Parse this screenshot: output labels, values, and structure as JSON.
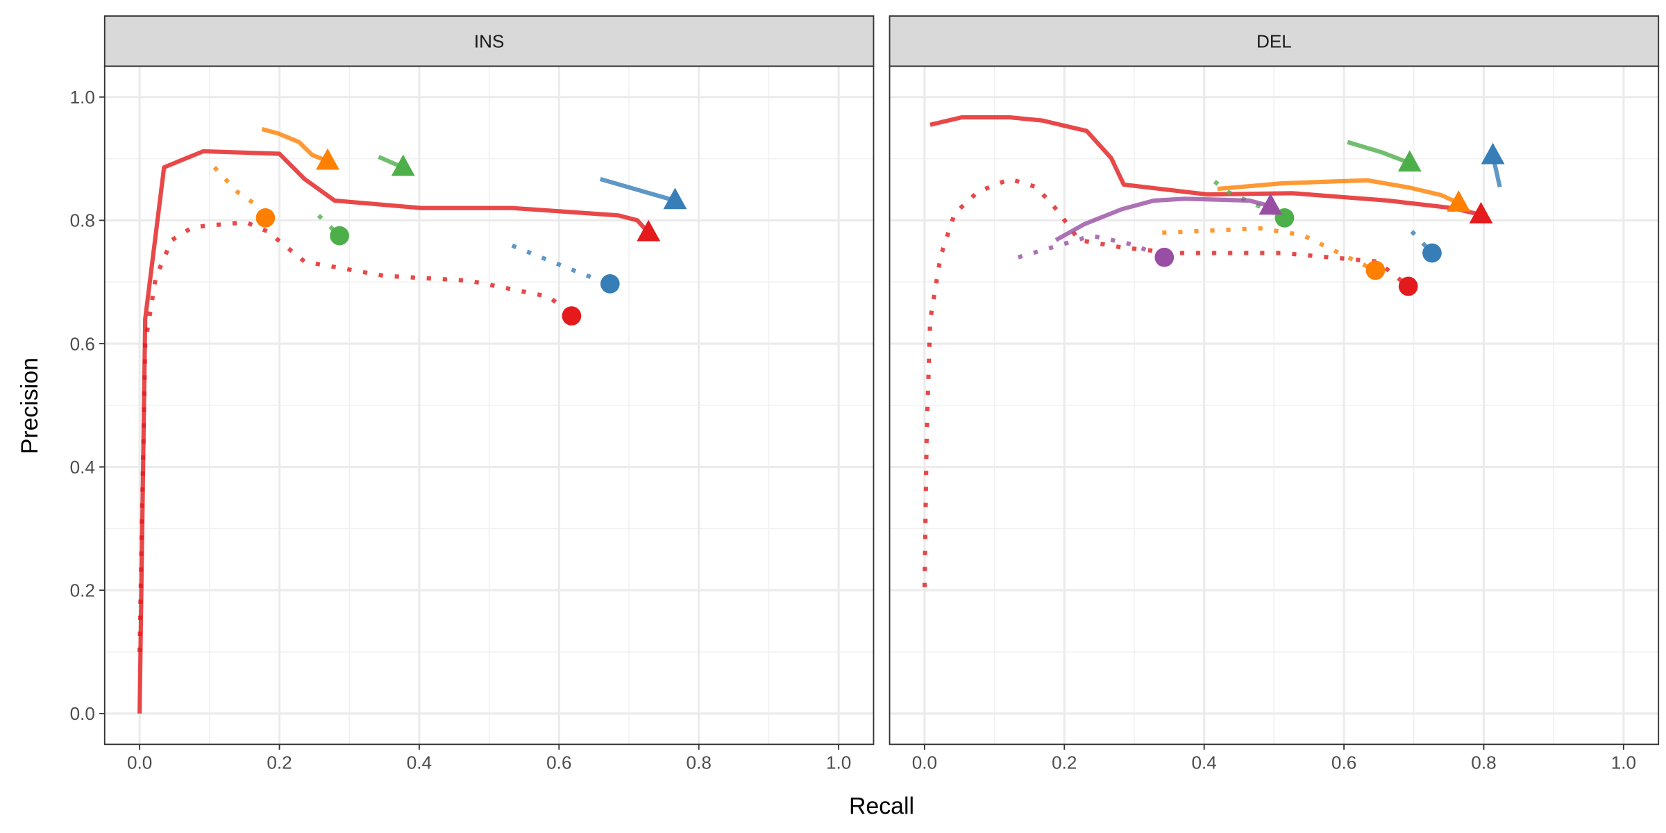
{
  "chart_data": {
    "type": "line",
    "xlabel": "Recall",
    "ylabel": "Precision",
    "xlim": [
      -0.05,
      1.05
    ],
    "ylim": [
      -0.05,
      1.05
    ],
    "x_ticks": [
      "0.0",
      "0.2",
      "0.4",
      "0.6",
      "0.8",
      "1.0"
    ],
    "y_ticks": [
      "0.0",
      "0.2",
      "0.4",
      "0.6",
      "0.8",
      "1.0"
    ],
    "grid": true,
    "legend": "none",
    "colors": {
      "red": "#E41A1C",
      "blue": "#377EB8",
      "green": "#4DAF4A",
      "purple": "#984EA3",
      "orange": "#FF7F00"
    },
    "facets": [
      {
        "label": "INS",
        "series": [
          {
            "color": "#E41A1C",
            "style": "solid",
            "end_marker": "triangle",
            "points": [
              [
                0,
                0
              ],
              [
                0.008,
                0.64
              ],
              [
                0.035,
                0.886
              ],
              [
                0.091,
                0.912
              ],
              [
                0.2,
                0.908
              ],
              [
                0.236,
                0.867
              ],
              [
                0.279,
                0.832
              ],
              [
                0.403,
                0.82
              ],
              [
                0.533,
                0.82
              ],
              [
                0.685,
                0.808
              ],
              [
                0.712,
                0.8
              ],
              [
                0.728,
                0.78
              ]
            ]
          },
          {
            "color": "#E41A1C",
            "style": "dotted",
            "end_marker": "circle",
            "points": [
              [
                0,
                0.1
              ],
              [
                0.008,
                0.6
              ],
              [
                0.023,
                0.707
              ],
              [
                0.046,
                0.768
              ],
              [
                0.076,
                0.789
              ],
              [
                0.152,
                0.797
              ],
              [
                0.183,
                0.782
              ],
              [
                0.236,
                0.733
              ],
              [
                0.35,
                0.71
              ],
              [
                0.472,
                0.702
              ],
              [
                0.586,
                0.676
              ],
              [
                0.618,
                0.645
              ]
            ]
          },
          {
            "color": "#FF7F00",
            "style": "solid",
            "end_marker": "triangle",
            "points": [
              [
                0.175,
                0.948
              ],
              [
                0.198,
                0.941
              ],
              [
                0.228,
                0.927
              ],
              [
                0.247,
                0.906
              ],
              [
                0.269,
                0.896
              ]
            ]
          },
          {
            "color": "#FF7F00",
            "style": "dotted",
            "end_marker": "circle",
            "points": [
              [
                0.107,
                0.886
              ],
              [
                0.14,
                0.846
              ],
              [
                0.163,
                0.828
              ],
              [
                0.18,
                0.804
              ]
            ]
          },
          {
            "color": "#4DAF4A",
            "style": "solid",
            "end_marker": "triangle",
            "points": [
              [
                0.342,
                0.903
              ],
              [
                0.362,
                0.893
              ],
              [
                0.377,
                0.886
              ]
            ]
          },
          {
            "color": "#4DAF4A",
            "style": "dotted",
            "end_marker": "circle",
            "points": [
              [
                0.256,
                0.808
              ],
              [
                0.286,
                0.775
              ]
            ]
          },
          {
            "color": "#377EB8",
            "style": "solid",
            "end_marker": "triangle",
            "points": [
              [
                0.659,
                0.867
              ],
              [
                0.766,
                0.832
              ]
            ]
          },
          {
            "color": "#377EB8",
            "style": "dotted",
            "end_marker": "circle",
            "points": [
              [
                0.533,
                0.759
              ],
              [
                0.636,
                0.712
              ],
              [
                0.673,
                0.697
              ]
            ]
          }
        ]
      },
      {
        "label": "DEL",
        "series": [
          {
            "color": "#E41A1C",
            "style": "solid",
            "end_marker": "triangle",
            "points": [
              [
                0.008,
                0.955
              ],
              [
                0.053,
                0.967
              ],
              [
                0.122,
                0.967
              ],
              [
                0.168,
                0.962
              ],
              [
                0.232,
                0.945
              ],
              [
                0.267,
                0.901
              ],
              [
                0.285,
                0.858
              ],
              [
                0.404,
                0.842
              ],
              [
                0.526,
                0.844
              ],
              [
                0.663,
                0.832
              ],
              [
                0.755,
                0.82
              ],
              [
                0.796,
                0.809
              ]
            ]
          },
          {
            "color": "#E41A1C",
            "style": "dotted",
            "end_marker": "circle",
            "points": [
              [
                0,
                0.205
              ],
              [
                0.003,
                0.45
              ],
              [
                0.008,
                0.638
              ],
              [
                0.023,
                0.742
              ],
              [
                0.043,
                0.811
              ],
              [
                0.076,
                0.846
              ],
              [
                0.122,
                0.867
              ],
              [
                0.16,
                0.854
              ],
              [
                0.19,
                0.816
              ],
              [
                0.221,
                0.768
              ],
              [
                0.282,
                0.756
              ],
              [
                0.358,
                0.747
              ],
              [
                0.511,
                0.747
              ],
              [
                0.648,
                0.733
              ],
              [
                0.692,
                0.693
              ]
            ]
          },
          {
            "color": "#FF7F00",
            "style": "solid",
            "end_marker": "triangle",
            "points": [
              [
                0.419,
                0.851
              ],
              [
                0.511,
                0.86
              ],
              [
                0.633,
                0.865
              ],
              [
                0.694,
                0.853
              ],
              [
                0.739,
                0.841
              ],
              [
                0.764,
                0.828
              ]
            ]
          },
          {
            "color": "#FF7F00",
            "style": "dotted",
            "end_marker": "circle",
            "points": [
              [
                0.34,
                0.78
              ],
              [
                0.48,
                0.787
              ],
              [
                0.541,
                0.776
              ],
              [
                0.602,
                0.742
              ],
              [
                0.645,
                0.719
              ]
            ]
          },
          {
            "color": "#4DAF4A",
            "style": "solid",
            "end_marker": "triangle",
            "points": [
              [
                0.605,
                0.927
              ],
              [
                0.655,
                0.91
              ],
              [
                0.694,
                0.893
              ]
            ]
          },
          {
            "color": "#4DAF4A",
            "style": "dotted",
            "end_marker": "circle",
            "points": [
              [
                0.415,
                0.863
              ],
              [
                0.434,
                0.846
              ],
              [
                0.515,
                0.804
              ]
            ]
          },
          {
            "color": "#377EB8",
            "style": "solid",
            "end_marker": "triangle",
            "points": [
              [
                0.823,
                0.854
              ],
              [
                0.813,
                0.905
              ]
            ]
          },
          {
            "color": "#377EB8",
            "style": "dotted",
            "end_marker": "circle",
            "points": [
              [
                0.697,
                0.782
              ],
              [
                0.726,
                0.747
              ]
            ]
          },
          {
            "color": "#984EA3",
            "style": "solid",
            "end_marker": "triangle",
            "points": [
              [
                0.188,
                0.768
              ],
              [
                0.229,
                0.794
              ],
              [
                0.282,
                0.818
              ],
              [
                0.328,
                0.832
              ],
              [
                0.373,
                0.835
              ],
              [
                0.465,
                0.832
              ],
              [
                0.495,
                0.823
              ]
            ]
          },
          {
            "color": "#984EA3",
            "style": "dotted",
            "end_marker": "circle",
            "points": [
              [
                0.134,
                0.74
              ],
              [
                0.206,
                0.764
              ],
              [
                0.239,
                0.775
              ],
              [
                0.297,
                0.761
              ],
              [
                0.343,
                0.74
              ]
            ]
          }
        ]
      }
    ]
  }
}
